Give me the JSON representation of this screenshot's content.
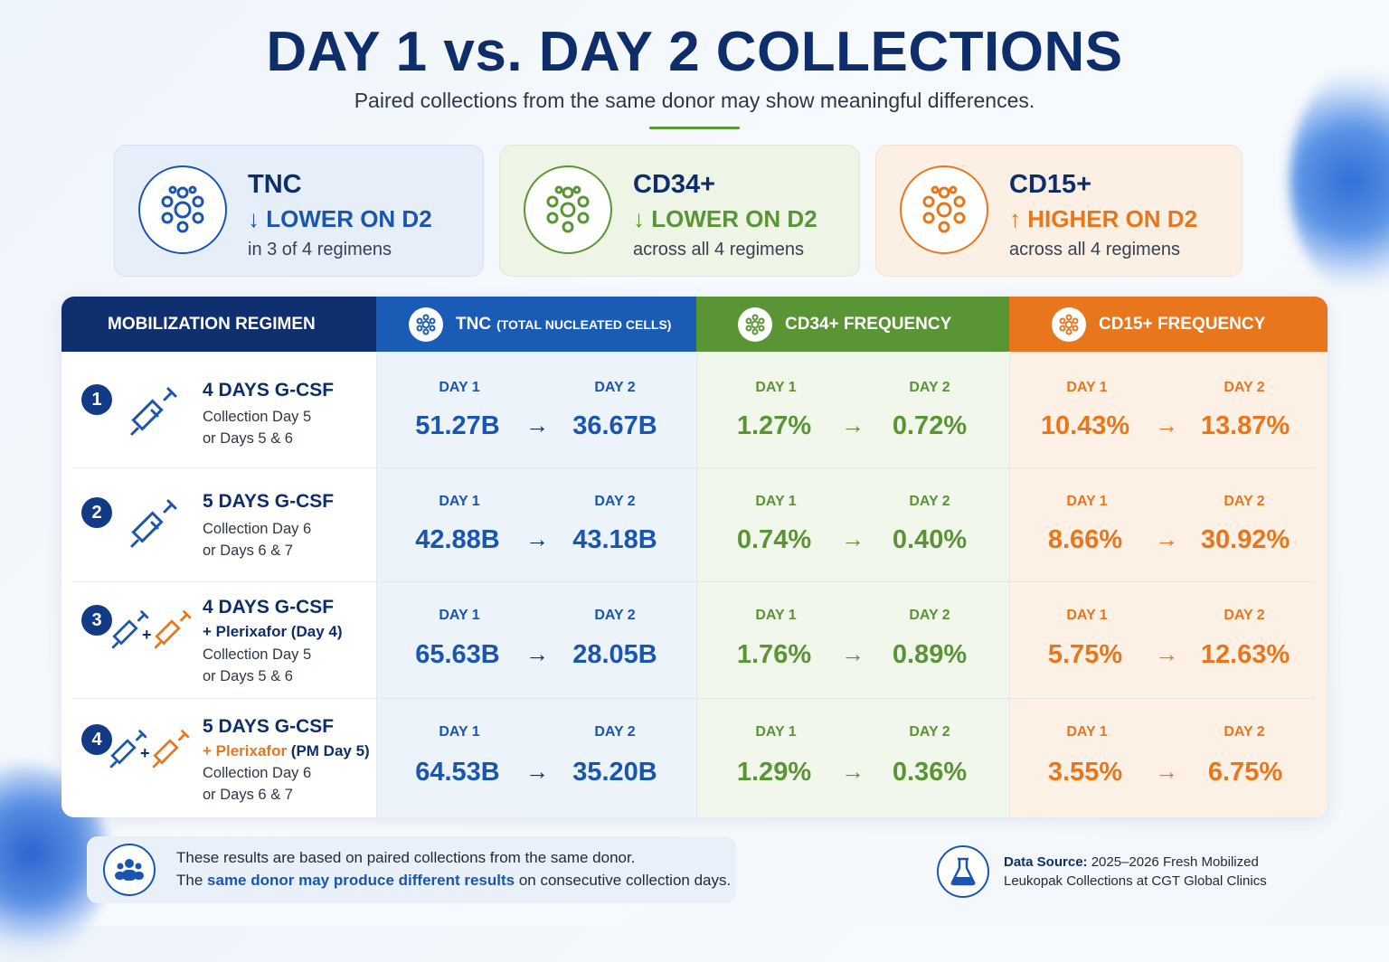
{
  "title": "DAY 1 vs. DAY 2 COLLECTIONS",
  "subtitle": "Paired collections from the same donor may show meaningful differences.",
  "colors": {
    "navy": "#0f2f6e",
    "blue": "#1a5cb5",
    "green": "#5a9535",
    "orange": "#e8761c"
  },
  "summary": [
    {
      "name": "TNC",
      "trend": "↓ LOWER ON D2",
      "detail": "in 3 of 4 regimens",
      "icon": "cell-cluster-icon"
    },
    {
      "name": "CD34+",
      "trend": "↓ LOWER ON D2",
      "detail": "across all 4 regimens",
      "icon": "cell-cluster-icon"
    },
    {
      "name": "CD15+",
      "trend": "↑ HIGHER ON D2",
      "detail": "across all 4 regimens",
      "icon": "cell-cluster-icon"
    }
  ],
  "table": {
    "headers": {
      "regimen": "MOBILIZATION REGIMEN",
      "tnc": "TNC",
      "tnc_sub": "(TOTAL NUCLEATED CELLS)",
      "cd34": "CD34+ FREQUENCY",
      "cd15": "CD15+ FREQUENCY"
    },
    "day1": "DAY 1",
    "day2": "DAY 2",
    "arrow": "→",
    "plus": "+",
    "rows": [
      {
        "num": "1",
        "title": "4 DAYS G-CSF",
        "plerixafor": "",
        "lines": [
          "Collection Day 5",
          "or Days 5 & 6"
        ],
        "tnc": [
          "51.27B",
          "36.67B"
        ],
        "cd34": [
          "1.27%",
          "0.72%"
        ],
        "cd15": [
          "10.43%",
          "13.87%"
        ]
      },
      {
        "num": "2",
        "title": "5 DAYS G-CSF",
        "plerixafor": "",
        "lines": [
          "Collection Day 6",
          "or Days 6 & 7"
        ],
        "tnc": [
          "42.88B",
          "43.18B"
        ],
        "cd34": [
          "0.74%",
          "0.40%"
        ],
        "cd15": [
          "8.66%",
          "30.92%"
        ]
      },
      {
        "num": "3",
        "title": "4 DAYS G-CSF",
        "plerixafor": "+ Plerixafor (Day 4)",
        "lines": [
          "Collection Day 5",
          "or Days 5 & 6"
        ],
        "tnc": [
          "65.63B",
          "28.05B"
        ],
        "cd34": [
          "1.76%",
          "0.89%"
        ],
        "cd15": [
          "5.75%",
          "12.63%"
        ]
      },
      {
        "num": "4",
        "title": "5 DAYS G-CSF",
        "plerixafor_a": "+ Plerixafor",
        "plerixafor_b": " (PM Day 5)",
        "lines": [
          "Collection Day 6",
          "or Days 6 & 7"
        ],
        "tnc": [
          "64.53B",
          "35.20B"
        ],
        "cd34": [
          "1.29%",
          "0.36%"
        ],
        "cd15": [
          "3.55%",
          "6.75%"
        ]
      }
    ]
  },
  "note": {
    "line1": "These results are based on paired collections from the same donor.",
    "line2_pre": "The ",
    "line2_hl": "same donor may produce different results",
    "line2_post": " on consecutive collection days."
  },
  "source": {
    "label": "Data Source:",
    "line1_rest": " 2025–2026 Fresh Mobilized",
    "line2": "Leukopak Collections at CGT Global Clinics"
  }
}
